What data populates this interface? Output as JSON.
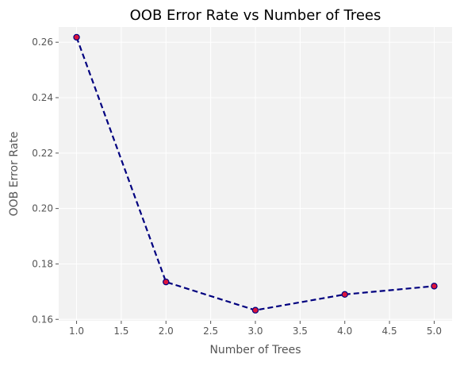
{
  "chart_data": {
    "type": "line",
    "title": "OOB Error Rate vs Number of Trees",
    "xlabel": "Number of Trees",
    "ylabel": "OOB Error Rate",
    "xlim": [
      0.8,
      5.2
    ],
    "ylim": [
      0.1595,
      0.2655
    ],
    "x_ticks": [
      1.0,
      1.5,
      2.0,
      2.5,
      3.0,
      3.5,
      4.0,
      4.5,
      5.0
    ],
    "x_tick_labels": [
      "1.0",
      "1.5",
      "2.0",
      "2.5",
      "3.0",
      "3.5",
      "4.0",
      "4.5",
      "5.0"
    ],
    "y_ticks": [
      0.16,
      0.18,
      0.2,
      0.22,
      0.24,
      0.26
    ],
    "y_tick_labels": [
      "0.16",
      "0.18",
      "0.20",
      "0.22",
      "0.24",
      "0.26"
    ],
    "grid": true,
    "series": [
      {
        "name": "OOB Error Rate",
        "x": [
          1,
          2,
          3,
          4,
          5
        ],
        "values": [
          0.2618,
          0.1735,
          0.1633,
          0.169,
          0.172
        ],
        "line_color": "#00007f",
        "line_style": "dashed",
        "marker_fill": "#dc143c",
        "marker_edge": "#00007f"
      }
    ],
    "colors": {
      "plot_background": "#f2f2f2",
      "grid": "#ffffff",
      "text": "#555555",
      "title": "#000000"
    }
  }
}
